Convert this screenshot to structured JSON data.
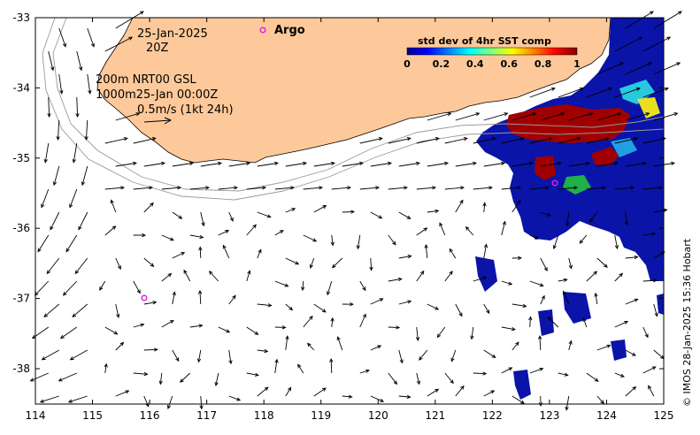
{
  "map": {
    "date": "25-Jan-2025",
    "time": "20Z",
    "depth_note": "200m  NRT00 GSL",
    "depth_note2": "1000m25-Jan 00:00Z",
    "scale_label": "0.5m/s (1kt 24h)",
    "argo_label": "Argo",
    "credit": "© IMOS 28-Jan-2025 15:36 Hobart",
    "colorbar": {
      "title": "std dev of 4hr SST comp",
      "ticks": [
        "0",
        "0.2",
        "0.4",
        "0.6",
        "0.8",
        "1"
      ]
    },
    "x_ticks": [
      "114",
      "115",
      "116",
      "117",
      "118",
      "119",
      "120",
      "121",
      "122",
      "123",
      "124",
      "125"
    ],
    "y_ticks": [
      "-33",
      "-34",
      "-35",
      "-36",
      "-37",
      "-38"
    ],
    "colors": {
      "land": "#fdc99a",
      "argo": "#e020e0",
      "sst_low": "#0a14a8",
      "sst_high": "#a00000"
    }
  }
}
